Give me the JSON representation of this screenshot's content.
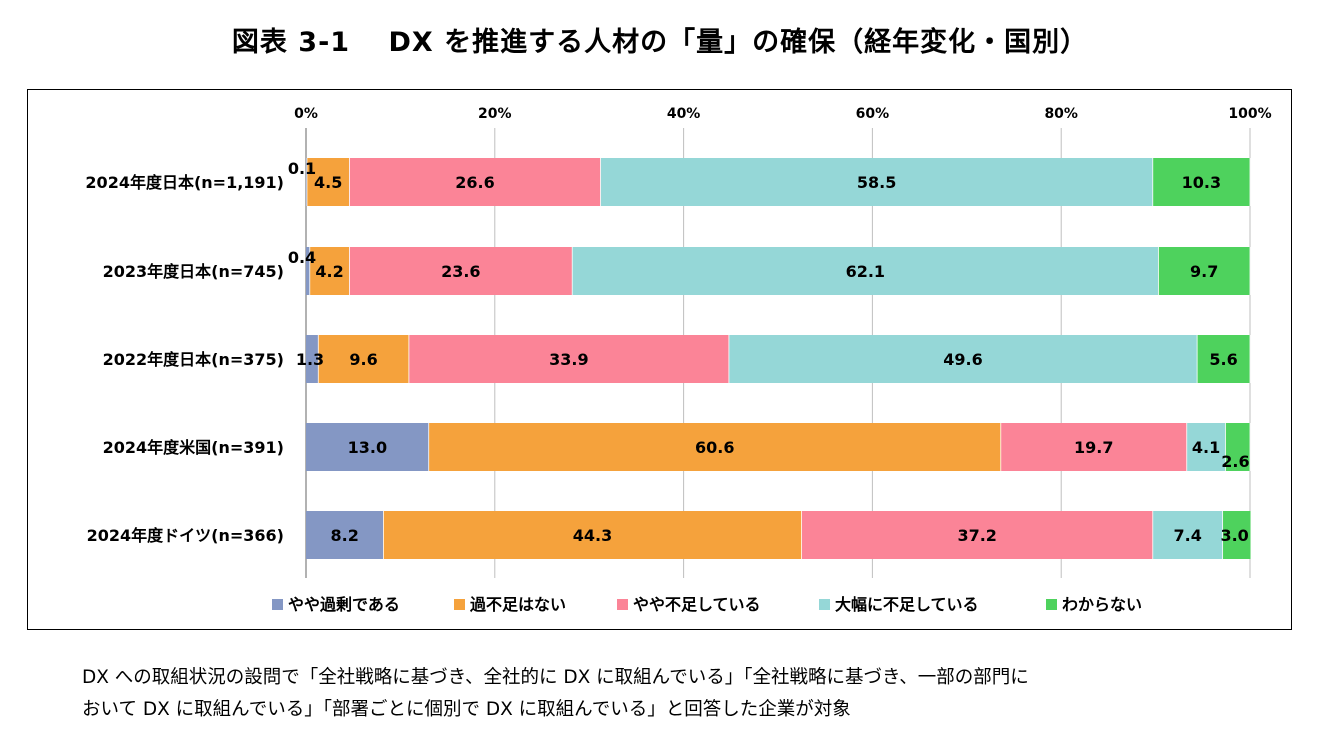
{
  "title": "図表 3-1　 DX を推進する人材の「量」の確保（経年変化・国別）",
  "note": {
    "line1": "DX への取組状況の設問で「全社戦略に基づき、全社的に DX に取組んでいる」「全社戦略に基づき、一部の部門に",
    "line2": "おいて DX に取組んでいる」「部署ごとに個別で DX に取組んでいる」と回答した企業が対象"
  },
  "chart_data": {
    "type": "bar",
    "orientation": "horizontal",
    "stacked": true,
    "categories": [
      "2024年度日本(n=1,191)",
      "2023年度日本(n=745)",
      "2022年度日本(n=375)",
      "2024年度米国(n=391)",
      "2024年度ドイツ(n=366)"
    ],
    "series": [
      {
        "name": "やや過剰である",
        "color": "#8497c4",
        "values": [
          0.1,
          0.4,
          1.3,
          13.0,
          8.2
        ]
      },
      {
        "name": "過不足はない",
        "color": "#f5a23c",
        "values": [
          4.5,
          4.2,
          9.6,
          60.6,
          44.3
        ]
      },
      {
        "name": "やや不足している",
        "color": "#fb8497",
        "values": [
          26.6,
          23.6,
          33.9,
          19.7,
          37.2
        ]
      },
      {
        "name": "大幅に不足している",
        "color": "#95d7d7",
        "values": [
          58.5,
          62.1,
          49.6,
          4.1,
          7.4
        ]
      },
      {
        "name": "わからない",
        "color": "#4ed25d",
        "values": [
          10.3,
          9.7,
          5.6,
          2.6,
          3.0
        ]
      }
    ],
    "labels": [
      [
        "0.1",
        "4.5",
        "26.6",
        "58.5",
        "10.3"
      ],
      [
        "0.4",
        "4.2",
        "23.6",
        "62.1",
        "9.7"
      ],
      [
        "1.3",
        "9.6",
        "33.9",
        "49.6",
        "5.6"
      ],
      [
        "13.0",
        "60.6",
        "19.7",
        "4.1",
        "2.6"
      ],
      [
        "8.2",
        "44.3",
        "37.2",
        "7.4",
        "3.0"
      ]
    ],
    "xlim": [
      0,
      100
    ],
    "xticks": [
      "0%",
      "20%",
      "40%",
      "60%",
      "80%",
      "100%"
    ],
    "grid": true,
    "legend_position": "bottom"
  }
}
